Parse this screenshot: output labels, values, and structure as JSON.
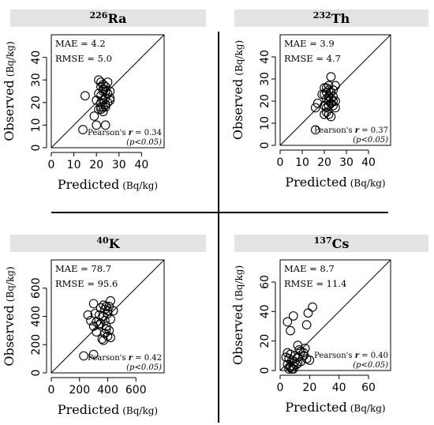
{
  "chart_data": [
    {
      "type": "scatter",
      "title_mass": "226",
      "title_symbol": "Ra",
      "xlabel": "Predicted",
      "ylabel": "Observed",
      "unit": "(Bq/kg)",
      "xlim": [
        0,
        50
      ],
      "ylim": [
        0,
        50
      ],
      "xticks": [
        0,
        10,
        20,
        30,
        40
      ],
      "yticks": [
        0,
        10,
        20,
        30,
        40
      ],
      "mae": "MAE = 4.2",
      "rmse": "RMSE = 5.0",
      "pearson_prefix": "Pearson's ",
      "pearson_r": "r",
      "pearson_value": " = 0.34",
      "pvalue": "(p<0.05)",
      "x": [
        21,
        22,
        23,
        24,
        25,
        22,
        23,
        24,
        21,
        23,
        22,
        25,
        26,
        24,
        23,
        22,
        24,
        20,
        22,
        21,
        23,
        25,
        26,
        15,
        19,
        23,
        22,
        24,
        26,
        14,
        20,
        24
      ],
      "y": [
        30,
        29,
        28,
        27,
        29,
        27,
        26,
        25,
        24,
        25,
        23,
        24,
        25,
        22,
        21,
        20,
        19,
        21,
        18,
        17,
        18,
        20,
        22,
        23,
        14,
        16,
        17,
        18,
        21,
        8,
        10,
        10
      ]
    },
    {
      "type": "scatter",
      "title_mass": "232",
      "title_symbol": "Th",
      "xlabel": "Predicted",
      "ylabel": "Observed",
      "unit": "(Bq/kg)",
      "xlim": [
        0,
        50
      ],
      "ylim": [
        0,
        50
      ],
      "xticks": [
        0,
        10,
        20,
        30,
        40
      ],
      "yticks": [
        0,
        10,
        20,
        30,
        40
      ],
      "mae": "MAE = 3.9",
      "rmse": "RMSE = 4.7",
      "pearson_prefix": "Pearson's ",
      "pearson_r": "r",
      "pearson_value": " = 0.37",
      "pvalue": "(p<0.05)",
      "x": [
        23,
        25,
        22,
        21,
        20,
        22,
        23,
        24,
        21,
        20,
        22,
        23,
        24,
        25,
        21,
        22,
        23,
        20,
        22,
        21,
        23,
        24,
        25,
        16,
        17,
        20,
        22,
        23,
        21,
        16,
        24,
        19
      ],
      "y": [
        31,
        27,
        27,
        26,
        26,
        25,
        24,
        25,
        24,
        23,
        22,
        21,
        22,
        20,
        21,
        20,
        19,
        18,
        18,
        17,
        19,
        18,
        17,
        17,
        19,
        14,
        14,
        13,
        15,
        7,
        20,
        23
      ]
    },
    {
      "type": "scatter",
      "title_mass": "40",
      "title_symbol": "K",
      "xlabel": "Predicted",
      "ylabel": "Observed",
      "unit": "(Bq/kg)",
      "xlim": [
        0,
        800
      ],
      "ylim": [
        0,
        800
      ],
      "xticks": [
        0,
        200,
        400,
        600
      ],
      "yticks": [
        0,
        200,
        400,
        600
      ],
      "mae": "MAE = 78.7",
      "rmse": "RMSE = 95.6",
      "pearson_prefix": "Pearson's ",
      "pearson_r": "r",
      "pearson_value": " = 0.42",
      "pvalue": "(p<0.05)",
      "x": [
        300,
        370,
        390,
        410,
        420,
        350,
        380,
        400,
        260,
        310,
        340,
        370,
        400,
        440,
        280,
        320,
        350,
        380,
        420,
        300,
        340,
        390,
        410,
        320,
        380,
        400,
        360,
        420,
        230,
        300,
        370,
        390
      ],
      "y": [
        490,
        480,
        470,
        470,
        510,
        460,
        450,
        440,
        410,
        420,
        410,
        400,
        420,
        440,
        370,
        360,
        350,
        370,
        380,
        330,
        340,
        310,
        300,
        290,
        280,
        260,
        240,
        250,
        120,
        130,
        230,
        330
      ]
    },
    {
      "type": "scatter",
      "title_mass": "137",
      "title_symbol": "Cs",
      "xlabel": "Predicted",
      "ylabel": "Observed",
      "unit": "(Bq/kg)",
      "xlim": [
        0,
        75
      ],
      "ylim": [
        0,
        75
      ],
      "xticks": [
        0,
        20,
        40,
        60
      ],
      "yticks": [
        0,
        20,
        40,
        60
      ],
      "mae": "MAE = 8.7",
      "rmse": "RMSE = 11.4",
      "pearson_prefix": "Pearson's ",
      "pearson_r": "r",
      "pearson_value": " = 0.40",
      "pvalue": "(p<0.05)",
      "x": [
        22,
        19,
        18,
        5,
        9,
        7,
        12,
        17,
        14,
        5,
        7,
        10,
        12,
        16,
        18,
        4,
        6,
        8,
        10,
        12,
        14,
        5,
        7,
        9,
        11,
        20,
        8,
        7,
        6,
        9,
        13,
        16
      ],
      "y": [
        43,
        39,
        31,
        33,
        37,
        27,
        17,
        15,
        13,
        12,
        11,
        10,
        9,
        10,
        8,
        9,
        8,
        7,
        6,
        5,
        6,
        4,
        3,
        3,
        4,
        7,
        1,
        2,
        1,
        1,
        14,
        12
      ]
    }
  ]
}
